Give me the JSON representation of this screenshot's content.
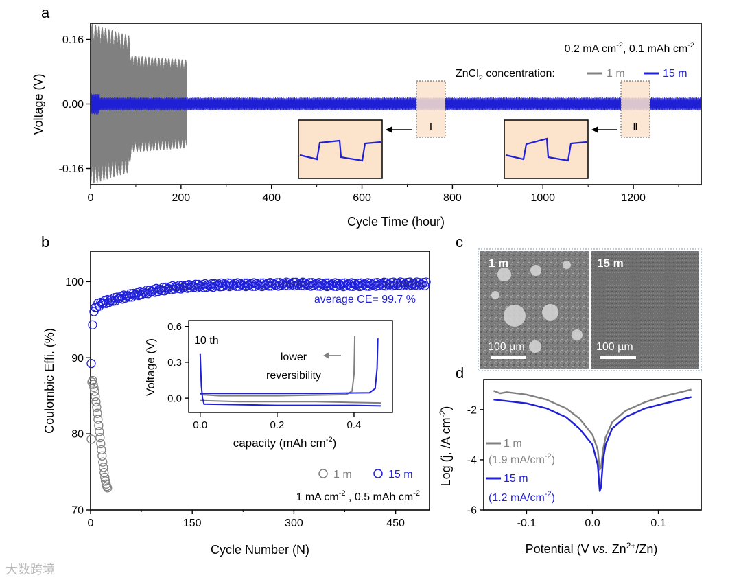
{
  "colors": {
    "gray": "#808080",
    "blue": "#1f1fd6",
    "inset_bg": "#fbe3cc"
  },
  "chart_data": [
    {
      "panel": "a",
      "type": "line",
      "xlabel": "Cycle Time (hour)",
      "ylabel": "Voltage (V)",
      "xlim": [
        0,
        1350
      ],
      "ylim": [
        -0.2,
        0.2
      ],
      "xticks": [
        "0",
        "200",
        "400",
        "600",
        "800",
        "1000",
        "1200"
      ],
      "yticks": [
        "0.16",
        "0.00",
        "-0.16"
      ],
      "title_line1": "0.2 mA cm",
      "title_sup1": "-2",
      "title_mid": ", 0.1 mAh cm",
      "title_sup2": "-2",
      "legend_prefix": "ZnCl",
      "legend_sub": "2",
      "legend_suffix": " concentration:",
      "legend": [
        "1 m",
        "15 m"
      ],
      "series": [
        {
          "name": "1 m",
          "x_range": [
            0,
            212
          ],
          "envelope": [
            [
              0,
              0.2
            ],
            [
              85,
              0.17
            ],
            [
              90,
              0.12
            ],
            [
              210,
              0.11
            ]
          ]
        },
        {
          "name": "15 m",
          "x_range": [
            0,
            1350
          ],
          "amplitude": 0.016
        }
      ],
      "markers": [
        "Ⅰ",
        "Ⅱ"
      ]
    },
    {
      "panel": "b",
      "type": "scatter",
      "xlabel": "Cycle Number (N)",
      "ylabel": "Coulombic Effi. (%)",
      "xlim": [
        0,
        500
      ],
      "ylim": [
        70,
        104
      ],
      "xticks": [
        "0",
        "150",
        "300",
        "450"
      ],
      "yticks": [
        "70",
        "80",
        "90",
        "100"
      ],
      "annotation": "average CE= 99.7 %",
      "condition_a": "1 mA cm",
      "condition_sup1": "-2",
      "condition_b": " , 0.5 mAh cm",
      "condition_sup2": "-2",
      "legend": [
        "1 m",
        "15 m"
      ],
      "series": [
        {
          "name": "1 m",
          "x": [
            1,
            2,
            3,
            4,
            5,
            6,
            7,
            8,
            9,
            10,
            11,
            12,
            13,
            14,
            15,
            16,
            17,
            18,
            19,
            20,
            21,
            22,
            23,
            24,
            25
          ],
          "y": [
            79.3,
            86.8,
            87.0,
            86.5,
            86.1,
            85.6,
            84.9,
            84.2,
            83.5,
            82.7,
            81.9,
            81.1,
            80.3,
            79.5,
            78.7,
            77.9,
            77.1,
            76.3,
            75.6,
            74.9,
            74.3,
            73.8,
            73.4,
            73.1,
            72.9
          ]
        },
        {
          "name": "15 m",
          "x": [
            1,
            2,
            3,
            4,
            5,
            6,
            8,
            10,
            15,
            20,
            30,
            40,
            60,
            80,
            100,
            120,
            150,
            180,
            200,
            250,
            300,
            350,
            400,
            450,
            495
          ],
          "y": [
            89.0,
            93.5,
            94.5,
            95.3,
            96.0,
            96.4,
            96.7,
            96.9,
            97.1,
            97.3,
            97.5,
            97.8,
            98.2,
            98.6,
            98.9,
            99.2,
            99.4,
            99.5,
            99.6,
            99.6,
            99.7,
            99.6,
            99.6,
            99.7,
            99.7
          ]
        }
      ],
      "inset": {
        "type": "line",
        "xlabel": "capacity (mAh cm",
        "xlabel_sup": "-2",
        "xlabel_end": ")",
        "ylabel": "Voltage (V)",
        "xlim": [
          -0.03,
          0.5
        ],
        "ylim": [
          -0.12,
          0.65
        ],
        "xticks": [
          "0.0",
          "0.2",
          "0.4"
        ],
        "yticks": [
          "0.0",
          "0.3",
          "0.6"
        ],
        "label_cycle": "10 th",
        "note_line1": "lower",
        "note_line2": "reversibility",
        "series": [
          {
            "name": "1 m charge",
            "x": [
              0,
              0.05,
              0.2,
              0.38,
              0.395,
              0.4,
              0.402
            ],
            "y": [
              0.03,
              0.02,
              0.02,
              0.03,
              0.06,
              0.2,
              0.52
            ]
          },
          {
            "name": "1 m discharge",
            "x": [
              0,
              0.1,
              0.3,
              0.47
            ],
            "y": [
              -0.02,
              -0.03,
              -0.03,
              -0.04
            ]
          },
          {
            "name": "15 m charge",
            "x": [
              0,
              0.1,
              0.3,
              0.44,
              0.455,
              0.46,
              0.462
            ],
            "y": [
              0.04,
              0.04,
              0.04,
              0.045,
              0.08,
              0.25,
              0.5
            ]
          },
          {
            "name": "15 m discharge",
            "x": [
              0,
              0.003,
              0.006,
              0.01,
              0.2,
              0.4,
              0.47
            ],
            "y": [
              0.37,
              0.1,
              0.0,
              -0.05,
              -0.06,
              -0.06,
              -0.065
            ]
          }
        ]
      }
    },
    {
      "panel": "d",
      "type": "line",
      "xlabel_a": "Potential (V ",
      "xlabel_it": "vs.",
      "xlabel_b": " Zn",
      "xlabel_sup": "2+",
      "xlabel_c": "/Zn)",
      "ylabel": "Log (j, /A cm",
      "ylabel_sup": "-2",
      "ylabel_end": ")",
      "xlim": [
        -0.165,
        0.165
      ],
      "ylim": [
        -6,
        -0.8
      ],
      "xticks": [
        "-0.1",
        "0.0",
        "0.1"
      ],
      "yticks": [
        "-2",
        "-4",
        "-6"
      ],
      "legend": [
        {
          "name": "1 m",
          "detail_a": "(1.9 mA/cm",
          "detail_sup": "-2",
          "detail_b": ")"
        },
        {
          "name": "15 m",
          "detail_a": "(1.2 mA/cm",
          "detail_sup": "-2",
          "detail_b": ")"
        }
      ],
      "series": [
        {
          "name": "1 m",
          "x": [
            -0.15,
            -0.14,
            -0.13,
            -0.1,
            -0.07,
            -0.04,
            -0.02,
            0.0,
            0.008,
            0.011,
            0.013,
            0.016,
            0.02,
            0.03,
            0.05,
            0.08,
            0.11,
            0.15
          ],
          "y": [
            -1.25,
            -1.35,
            -1.3,
            -1.4,
            -1.6,
            -1.95,
            -2.35,
            -3.0,
            -3.6,
            -4.4,
            -4.3,
            -3.6,
            -3.1,
            -2.5,
            -2.05,
            -1.7,
            -1.45,
            -1.2
          ]
        },
        {
          "name": "15 m",
          "x": [
            -0.15,
            -0.1,
            -0.07,
            -0.04,
            -0.02,
            0.0,
            0.008,
            0.011,
            0.013,
            0.016,
            0.02,
            0.03,
            0.05,
            0.08,
            0.11,
            0.15
          ],
          "y": [
            -1.6,
            -1.75,
            -1.95,
            -2.3,
            -2.75,
            -3.4,
            -4.2,
            -5.25,
            -5.1,
            -4.0,
            -3.4,
            -2.75,
            -2.3,
            -1.95,
            -1.75,
            -1.5
          ]
        }
      ]
    }
  ],
  "sem": {
    "panel": "c",
    "left_label": "1 m",
    "right_label": "15 m",
    "scale_label": "100 µm"
  },
  "panel_labels": {
    "a": "a",
    "b": "b",
    "c": "c",
    "d": "d"
  },
  "watermark": "大数跨境"
}
